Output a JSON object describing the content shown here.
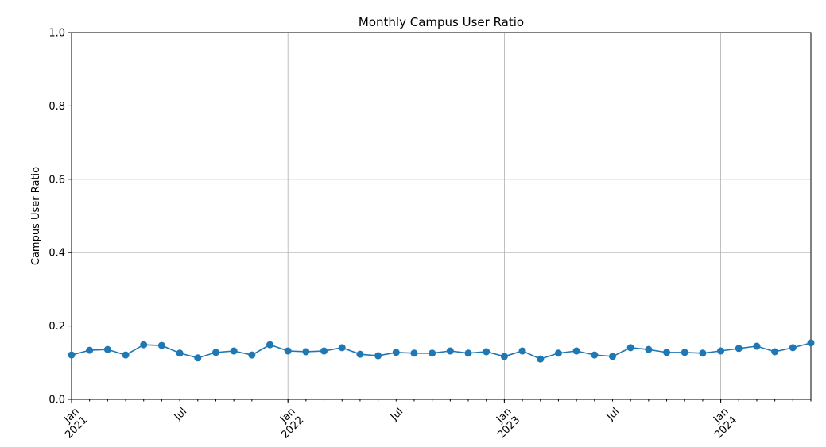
{
  "chart_data": {
    "type": "line",
    "title": "Monthly Campus User Ratio",
    "ylabel": "Campus User Ratio",
    "x": [
      "2021-01",
      "2021-02",
      "2021-03",
      "2021-04",
      "2021-05",
      "2021-06",
      "2021-07",
      "2021-08",
      "2021-09",
      "2021-10",
      "2021-11",
      "2021-12",
      "2022-01",
      "2022-02",
      "2022-03",
      "2022-04",
      "2022-05",
      "2022-06",
      "2022-07",
      "2022-08",
      "2022-09",
      "2022-10",
      "2022-11",
      "2022-12",
      "2023-01",
      "2023-02",
      "2023-03",
      "2023-04",
      "2023-05",
      "2023-06",
      "2023-07",
      "2023-08",
      "2023-09",
      "2023-10",
      "2023-11",
      "2023-12",
      "2024-01",
      "2024-02",
      "2024-03",
      "2024-04",
      "2024-05",
      "2024-06"
    ],
    "series": [
      {
        "name": "Campus User Ratio",
        "color": "#1f77b4",
        "values": [
          0.121,
          0.134,
          0.136,
          0.121,
          0.149,
          0.147,
          0.126,
          0.113,
          0.128,
          0.132,
          0.121,
          0.149,
          0.132,
          0.13,
          0.132,
          0.141,
          0.123,
          0.119,
          0.128,
          0.126,
          0.126,
          0.132,
          0.126,
          0.13,
          0.117,
          0.132,
          0.11,
          0.126,
          0.132,
          0.121,
          0.117,
          0.141,
          0.136,
          0.128,
          0.128,
          0.126,
          0.132,
          0.139,
          0.145,
          0.13,
          0.141,
          0.154
        ]
      }
    ],
    "xlim": [
      "2021-01",
      "2024-06"
    ],
    "xticks": [
      {
        "value": "2021-01",
        "label": "Jan\n2021"
      },
      {
        "value": "2022-01",
        "label": "Jan\n2022"
      },
      {
        "value": "2023-01",
        "label": "Jan\n2023"
      },
      {
        "value": "2024-01",
        "label": "Jan\n2024"
      }
    ],
    "xminor_ticks": [
      {
        "value": "2021-07",
        "label": "Jul"
      },
      {
        "value": "2022-07",
        "label": "Jul"
      },
      {
        "value": "2023-07",
        "label": "Jul"
      }
    ],
    "ylim": [
      0,
      1
    ],
    "yticks": [
      {
        "value": 0,
        "label": "0.0"
      },
      {
        "value": 0.2,
        "label": "0.2"
      },
      {
        "value": 0.4,
        "label": "0.4"
      },
      {
        "value": 0.6,
        "label": "0.6"
      },
      {
        "value": 0.8,
        "label": "0.8"
      },
      {
        "value": 1,
        "label": "1.0"
      }
    ],
    "grid": true
  }
}
